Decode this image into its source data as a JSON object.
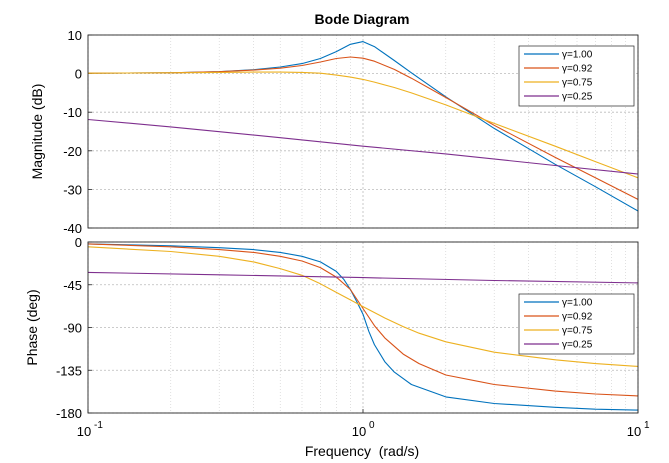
{
  "chart_data": {
    "type": "line",
    "title": "Bode Diagram",
    "xlabel": "Frequency  (rad/s)",
    "xscale": "log",
    "xlim": [
      0.1,
      10
    ],
    "x_ticks": [
      {
        "value": 0.1,
        "base": "10",
        "exp": "-1"
      },
      {
        "value": 1,
        "base": "10",
        "exp": "0"
      },
      {
        "value": 10,
        "base": "10",
        "exp": "1"
      }
    ],
    "grid": true,
    "colors": [
      "#0072bd",
      "#d95319",
      "#edb120",
      "#7e2f8e"
    ],
    "panels": [
      {
        "name": "magnitude",
        "ylabel": "Magnitude (dB)",
        "ylim": [
          -40,
          10
        ],
        "yticks": [
          10,
          0,
          -10,
          -20,
          -30,
          -40
        ],
        "legend_position": "top-right",
        "series": [
          {
            "name": "γ=1.00",
            "x": [
              0.1,
              0.2,
              0.3,
              0.4,
              0.5,
              0.6,
              0.7,
              0.8,
              0.9,
              1.0,
              1.1,
              1.3,
              1.5,
              2,
              3,
              5,
              7,
              10
            ],
            "y": [
              0.1,
              0.2,
              0.5,
              1.0,
              1.7,
              2.6,
              3.9,
              5.7,
              7.6,
              8.3,
              7.0,
              3.4,
              0.2,
              -6.0,
              -14.2,
              -23.5,
              -29.3,
              -35.6
            ]
          },
          {
            "name": "γ=0.92",
            "x": [
              0.1,
              0.2,
              0.3,
              0.4,
              0.5,
              0.6,
              0.7,
              0.8,
              0.9,
              1.0,
              1.1,
              1.3,
              1.5,
              2,
              3,
              5,
              7,
              10
            ],
            "y": [
              0.1,
              0.2,
              0.5,
              0.9,
              1.4,
              2.1,
              3.0,
              3.9,
              4.3,
              4.0,
              3.2,
              1.1,
              -1.2,
              -6.2,
              -13.4,
              -21.7,
              -27.0,
              -32.6
            ]
          },
          {
            "name": "γ=0.75",
            "x": [
              0.1,
              0.2,
              0.3,
              0.4,
              0.5,
              0.6,
              0.7,
              0.8,
              0.9,
              1.0,
              1.1,
              1.3,
              1.5,
              2,
              3,
              5,
              7,
              10
            ],
            "y": [
              0.1,
              0.2,
              0.3,
              0.4,
              0.4,
              0.3,
              0.1,
              -0.4,
              -0.9,
              -1.5,
              -2.2,
              -3.6,
              -5.0,
              -8.1,
              -12.9,
              -18.8,
              -22.8,
              -27.0
            ]
          },
          {
            "name": "γ=0.25",
            "x": [
              0.1,
              0.2,
              0.5,
              1,
              2,
              5,
              10
            ],
            "y": [
              -11.9,
              -13.8,
              -16.6,
              -18.8,
              -20.8,
              -23.8,
              -26.0
            ]
          }
        ]
      },
      {
        "name": "phase",
        "ylabel": "Phase (deg)",
        "ylim": [
          -180,
          0
        ],
        "yticks": [
          0,
          -45,
          -90,
          -135,
          -180
        ],
        "legend_position": "right",
        "series": [
          {
            "name": "γ=1.00",
            "x": [
              0.1,
              0.2,
              0.3,
              0.4,
              0.5,
              0.6,
              0.7,
              0.8,
              0.85,
              0.9,
              0.95,
              1.0,
              1.05,
              1.1,
              1.2,
              1.3,
              1.5,
              2,
              3,
              5,
              7,
              10
            ],
            "y": [
              -2,
              -4,
              -6,
              -8,
              -11,
              -15,
              -21,
              -31,
              -39,
              -50,
              -63,
              -76,
              -94,
              -108,
              -126,
              -137,
              -150,
              -163,
              -170,
              -174,
              -176,
              -177
            ]
          },
          {
            "name": "γ=0.92",
            "x": [
              0.1,
              0.2,
              0.3,
              0.4,
              0.5,
              0.6,
              0.7,
              0.8,
              0.9,
              1.0,
              1.1,
              1.2,
              1.4,
              1.6,
              2,
              3,
              5,
              7,
              10
            ],
            "y": [
              -2,
              -5,
              -8,
              -11,
              -15,
              -20,
              -27,
              -37,
              -50,
              -70,
              -88,
              -101,
              -118,
              -128,
              -140,
              -150,
              -157,
              -160,
              -162
            ]
          },
          {
            "name": "γ=0.75",
            "x": [
              0.1,
              0.2,
              0.3,
              0.4,
              0.5,
              0.6,
              0.7,
              0.8,
              0.9,
              1.0,
              1.2,
              1.4,
              1.6,
              2,
              3,
              5,
              7,
              10
            ],
            "y": [
              -5,
              -10,
              -15,
              -21,
              -28,
              -35,
              -44,
              -53,
              -61,
              -68,
              -80,
              -89,
              -96,
              -105,
              -116,
              -124,
              -128,
              -131
            ]
          },
          {
            "name": "γ=0.25",
            "x": [
              0.1,
              0.3,
              1,
              3,
              10
            ],
            "y": [
              -32,
              -34.5,
              -37.5,
              -40.5,
              -43
            ]
          }
        ]
      }
    ]
  }
}
